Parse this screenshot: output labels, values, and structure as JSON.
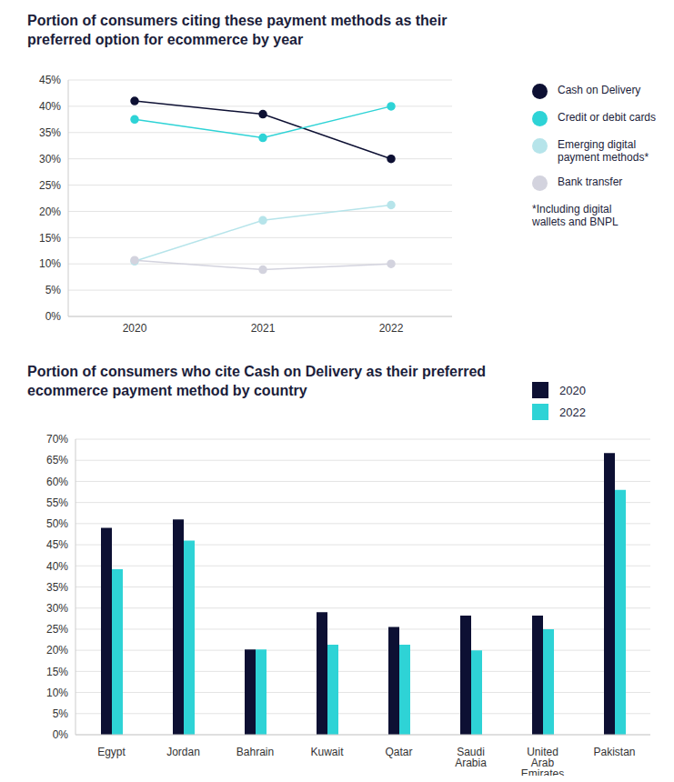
{
  "chart_data": [
    {
      "type": "line",
      "title": "Portion of consumers citing these payment methods as their preferred option for ecommerce by year",
      "categories": [
        "2020",
        "2021",
        "2022"
      ],
      "series": [
        {
          "name": "Cash on Delivery",
          "color": "#0d1033",
          "marker": "circle",
          "values": [
            41,
            38.5,
            30
          ]
        },
        {
          "name": "Credit or debit cards",
          "color": "#2ed3d6",
          "marker": "circle",
          "values": [
            37.5,
            34,
            40
          ]
        },
        {
          "name": "Emerging digital payment methods*",
          "color": "#b6e4ea",
          "marker": "circle",
          "values": [
            10.5,
            18.3,
            21.2
          ]
        },
        {
          "name": "Bank transfer",
          "color": "#d3d3de",
          "marker": "circle",
          "values": [
            10.7,
            8.9,
            10
          ]
        }
      ],
      "ylim": [
        0,
        45
      ],
      "yticks": [
        {
          "value": 0,
          "label": "0%"
        },
        {
          "value": 5,
          "label": "5%"
        },
        {
          "value": 10,
          "label": "10%"
        },
        {
          "value": 15,
          "label": "15%"
        },
        {
          "value": 20,
          "label": "20%"
        },
        {
          "value": 25,
          "label": "25%"
        },
        {
          "value": 30,
          "label": "30%"
        },
        {
          "value": 35,
          "label": "35%"
        },
        {
          "value": 40,
          "label": "40%"
        },
        {
          "value": 45,
          "label": "45%"
        }
      ],
      "grid": true,
      "legend": "right",
      "annotations": [
        "*Including digital wallets and BNPL"
      ]
    },
    {
      "type": "bar",
      "title": "Portion of consumers who cite Cash on Delivery as their preferred ecommerce payment method by country",
      "categories": [
        "Egypt",
        "Jordan",
        "Bahrain",
        "Kuwait",
        "Qatar",
        "Saudi Arabia",
        "United Arab Emirates",
        "Pakistan"
      ],
      "series": [
        {
          "name": "2020",
          "color": "#0d1033",
          "values": [
            49,
            51,
            20.2,
            29,
            25.5,
            28.2,
            28.2,
            66.7
          ]
        },
        {
          "name": "2022",
          "color": "#2ed3d6",
          "values": [
            39.2,
            46,
            20.2,
            21.3,
            21.3,
            20,
            25,
            58
          ]
        }
      ],
      "ylim": [
        0,
        70
      ],
      "yticks": [
        {
          "value": 0,
          "label": "0%"
        },
        {
          "value": 5,
          "label": "5%"
        },
        {
          "value": 10,
          "label": "10%"
        },
        {
          "value": 15,
          "label": "15%"
        },
        {
          "value": 20,
          "label": "20%"
        },
        {
          "value": 25,
          "label": "25%"
        },
        {
          "value": 30,
          "label": "30%"
        },
        {
          "value": 35,
          "label": "35%"
        },
        {
          "value": 40,
          "label": "40%"
        },
        {
          "value": 45,
          "label": "45%"
        },
        {
          "value": 50,
          "label": "50%"
        },
        {
          "value": 55,
          "label": "55%"
        },
        {
          "value": 60,
          "label": "60%"
        },
        {
          "value": 65,
          "label": "65%"
        },
        {
          "value": 70,
          "label": "70%"
        }
      ],
      "grid": true,
      "legend": "right"
    }
  ]
}
